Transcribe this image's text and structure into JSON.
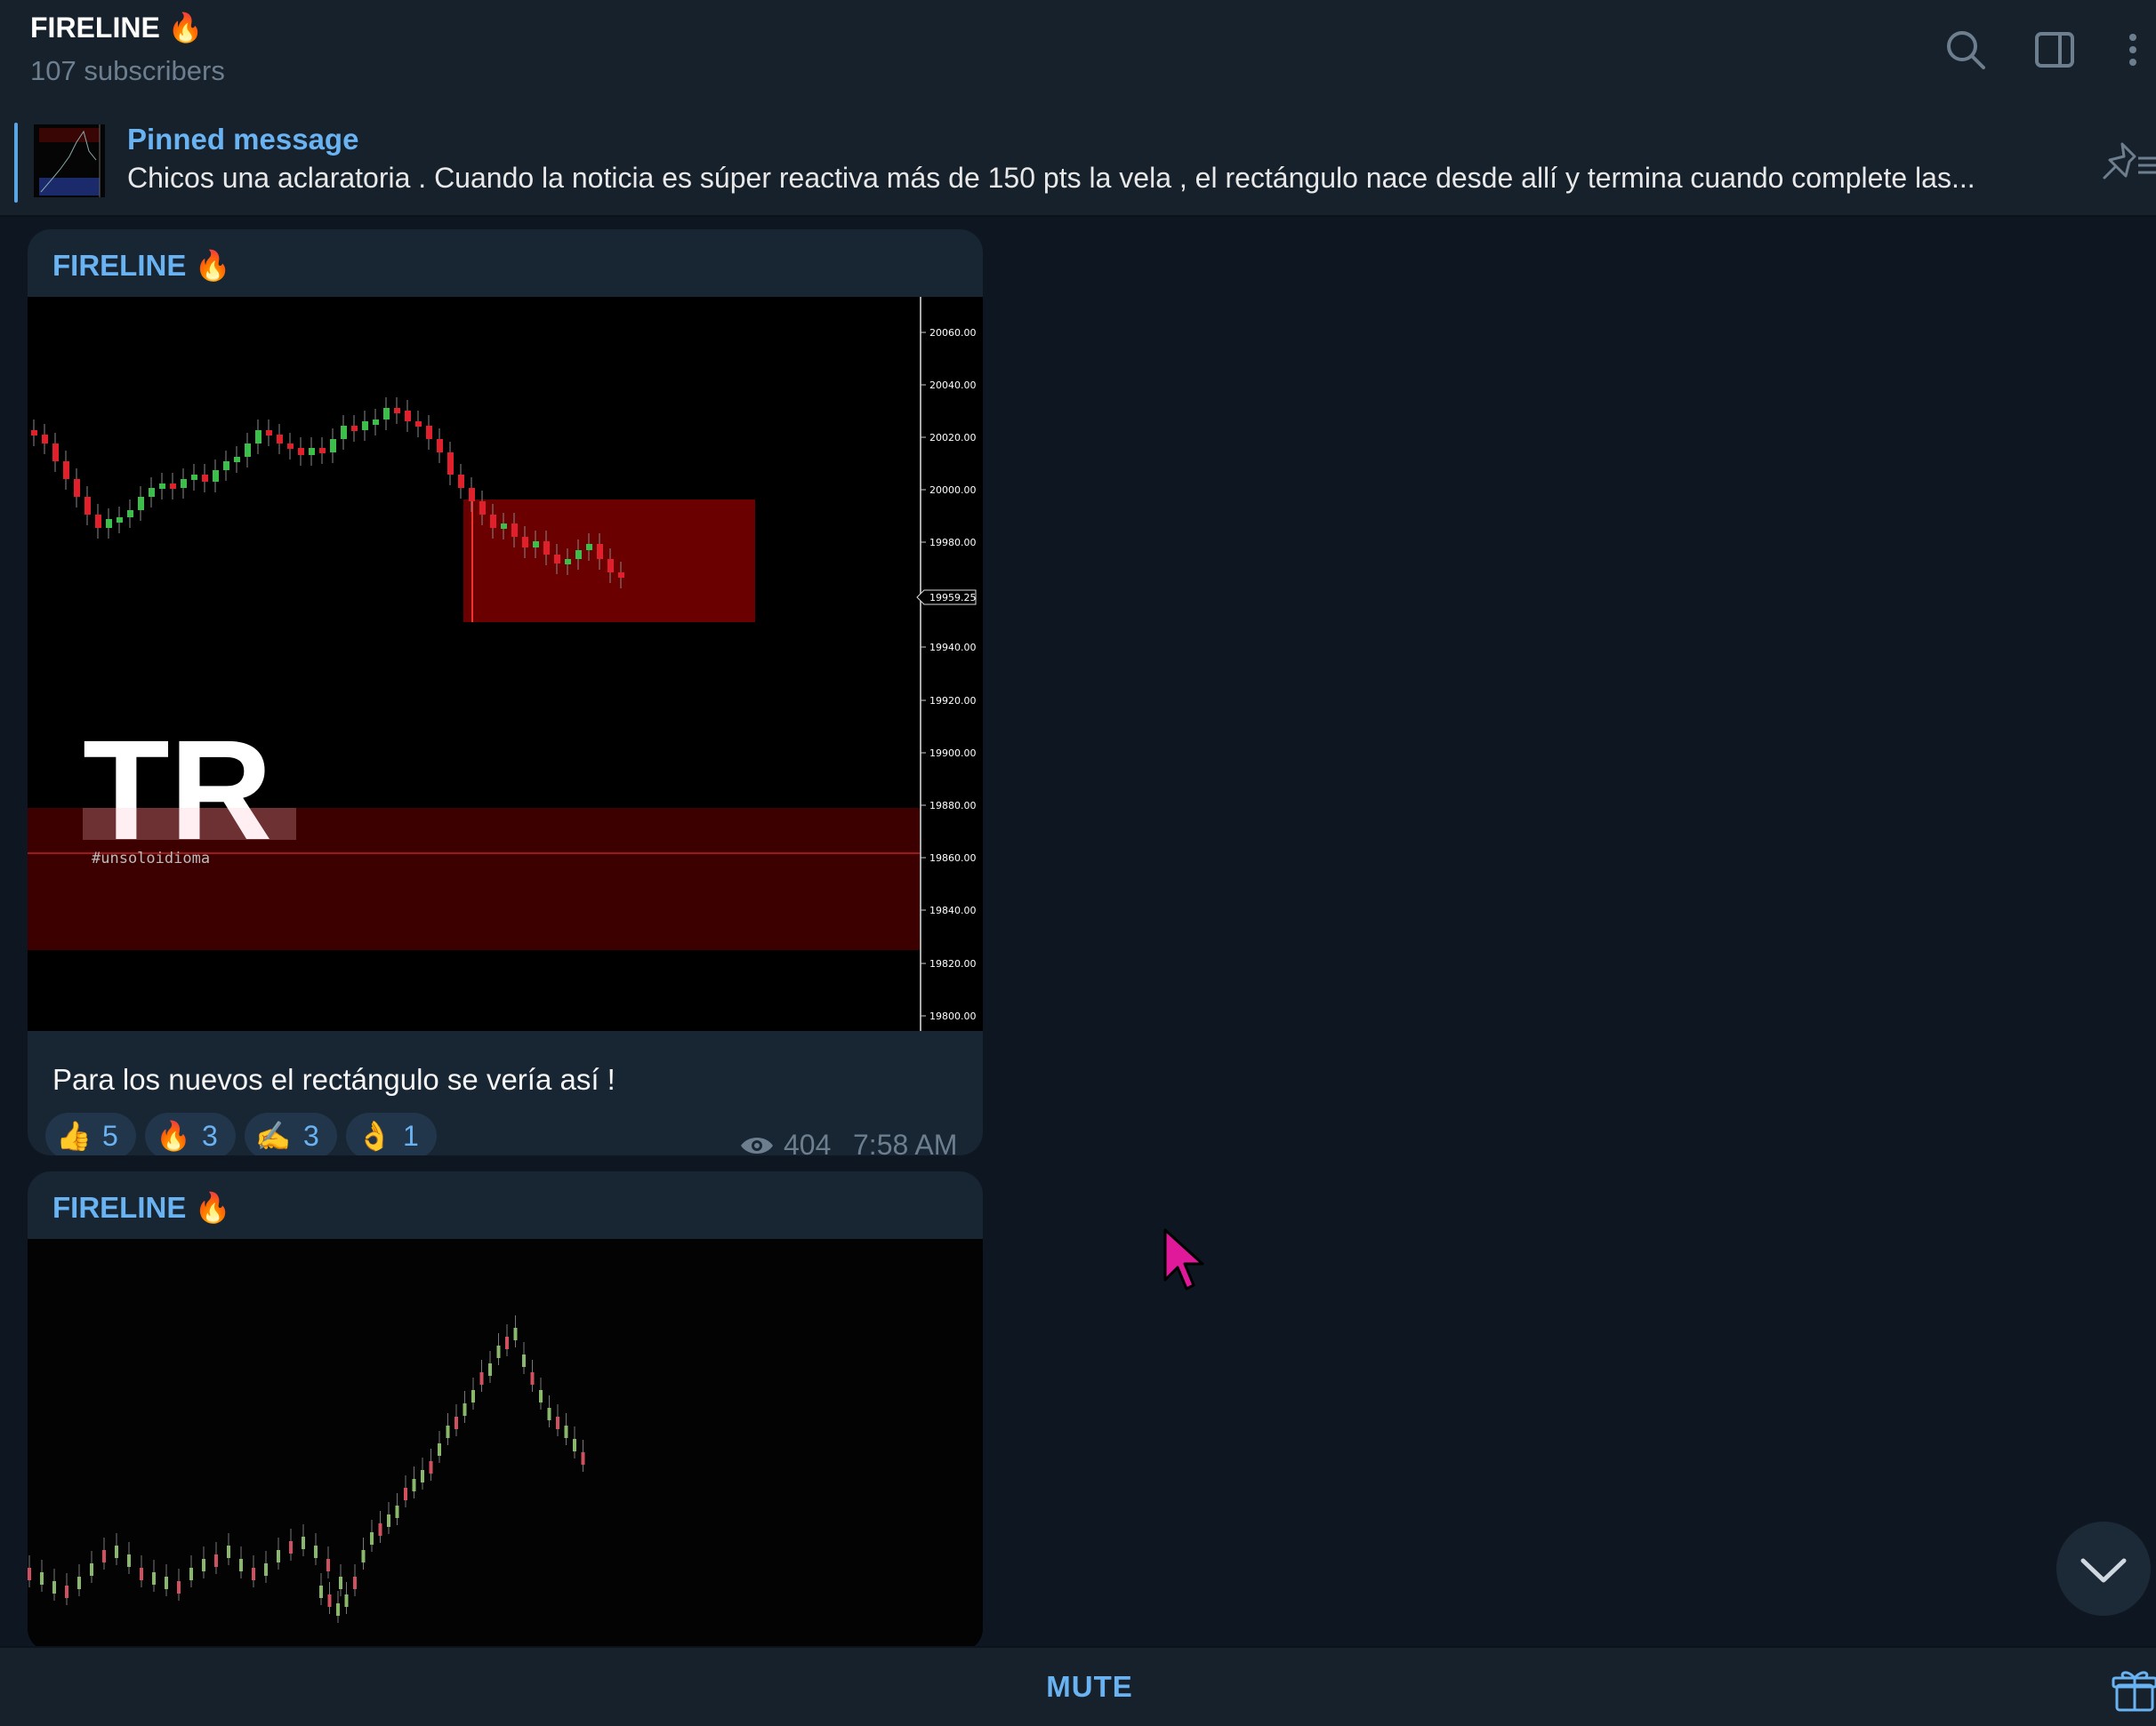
{
  "header": {
    "title": "FIRELINE 🔥",
    "subtitle": "107 subscribers",
    "icons": [
      "search-icon",
      "sidebar-toggle-icon",
      "more-vertical-icon"
    ]
  },
  "pinned": {
    "title": "Pinned message",
    "text": "Chicos una aclaratoria .  Cuando la noticia es súper reactiva más de 150 pts la vela , el rectángulo nace desde allí y termina cuando complete las..."
  },
  "messages": [
    {
      "author": "FIRELINE 🔥",
      "caption": "Para los nuevos el rectángulo se vería así !",
      "views": "404",
      "time": "7:58 AM",
      "reactions": [
        {
          "emoji": "👍",
          "count": "5"
        },
        {
          "emoji": "🔥",
          "count": "3"
        },
        {
          "emoji": "✍️",
          "count": "3"
        },
        {
          "emoji": "👌",
          "count": "1"
        }
      ],
      "image": {
        "logo_text": "TR",
        "logo_subtext": "#unsoloidioma",
        "price_ticks": [
          "20060.00",
          "20040.00",
          "20020.00",
          "20000.00",
          "19980.00",
          "19959.25",
          "19940.00",
          "19920.00",
          "19900.00",
          "19880.00",
          "19860.00",
          "19840.00",
          "19820.00",
          "19800.00"
        ]
      }
    },
    {
      "author": "FIRELINE 🔥"
    }
  ],
  "footer": {
    "mute_label": "MUTE"
  },
  "colors": {
    "accent": "#6ab3f3",
    "bg": "#0e1621",
    "panel": "#17212b",
    "bubble": "#182533"
  }
}
